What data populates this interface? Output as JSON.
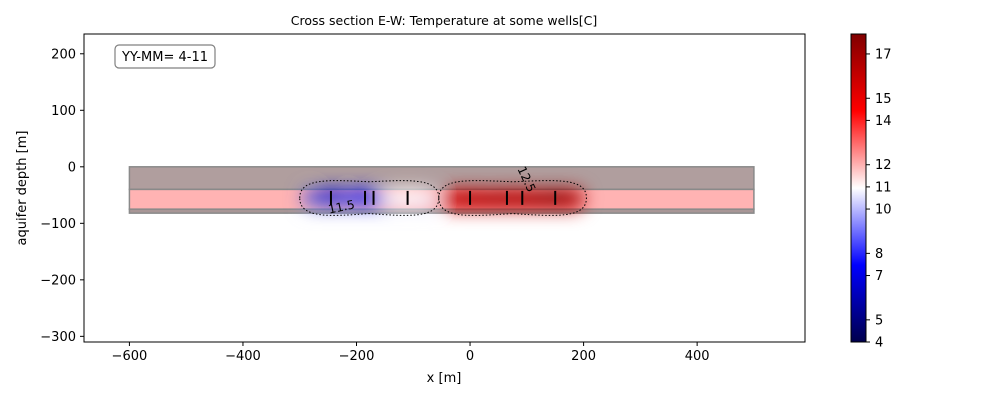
{
  "chart_data": {
    "type": "heatmap",
    "title": "Cross section E-W: Temperature at some wells[C]",
    "xlabel": "x [m]",
    "ylabel": "aquifer depth [m]",
    "xlim": [
      -680,
      590
    ],
    "ylim": [
      -310,
      235
    ],
    "x_ticks": [
      -600,
      -400,
      -200,
      0,
      200,
      400
    ],
    "y_ticks": [
      200,
      100,
      0,
      -100,
      -200,
      -300
    ],
    "annotation": "YY-MM= 4-11",
    "colorbar": {
      "colormap": "seismic",
      "range": [
        4,
        17.9
      ],
      "ticks": [
        4,
        5,
        7,
        8,
        10,
        11,
        12,
        14,
        15,
        17
      ]
    },
    "layers": [
      {
        "name": "confining layer top",
        "x": [
          -600,
          500
        ],
        "y_top": 0,
        "y_bottom": -40,
        "color": "#b09e9e"
      },
      {
        "name": "aquifer",
        "x": [
          -600,
          500
        ],
        "y_top": -40,
        "y_bottom": -75,
        "color": "#ffb3b3",
        "value": 12.5
      },
      {
        "name": "confining layer bottom",
        "x": [
          -600,
          500
        ],
        "y_top": -75,
        "y_bottom": -82,
        "color": "#a89696"
      }
    ],
    "background_temperature": 12.5,
    "wells": [
      {
        "x": -245,
        "z": -55,
        "value": 6.5
      },
      {
        "x": -185,
        "z": -55,
        "value": 6.8
      },
      {
        "x": -170,
        "z": -55,
        "value": 7.0
      },
      {
        "x": -110,
        "z": -55,
        "value": 11.0
      },
      {
        "x": 0,
        "z": -55,
        "value": 16.5
      },
      {
        "x": 65,
        "z": -55,
        "value": 17.2
      },
      {
        "x": 92,
        "z": -55,
        "value": 16.8
      },
      {
        "x": 150,
        "z": -55,
        "value": 17.5
      }
    ],
    "contours": [
      {
        "level": 11.5,
        "label": "11.5"
      },
      {
        "level": 12.5,
        "label": "12.5"
      }
    ]
  }
}
